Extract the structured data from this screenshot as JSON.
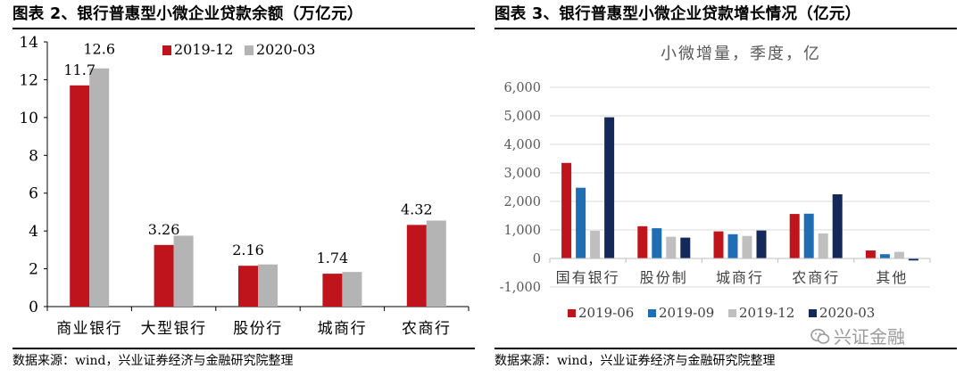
{
  "left": {
    "title": "图表 2、银行普惠型小微企业贷款余额（万亿元）",
    "source": "数据来源：wind，兴业证券经济与金融研究院整理"
  },
  "right": {
    "title": "图表 3、银行普惠型小微企业贷款增长情况（亿元）",
    "source": "数据来源：wind，兴业证券经济与金融研究院整理"
  },
  "watermark": "兴证金融",
  "chart_data": [
    {
      "type": "bar",
      "title": "",
      "xlabel": "",
      "ylabel": "",
      "categories": [
        "商业银行",
        "大型银行",
        "股份行",
        "城商行",
        "农商行"
      ],
      "series": [
        {
          "name": "2019-12",
          "values": [
            11.7,
            3.26,
            2.16,
            1.74,
            4.32
          ],
          "color": "#c0141c"
        },
        {
          "name": "2020-03",
          "values": [
            12.6,
            3.75,
            2.23,
            1.83,
            4.55
          ],
          "color": "#b4b4b4"
        }
      ],
      "data_labels": [
        "11.7",
        "3.26",
        "2.16",
        "1.74",
        "4.32"
      ],
      "data_labels_series2": [
        "12.6",
        "",
        "",
        "",
        ""
      ],
      "ylim": [
        0,
        14
      ],
      "yticks": [
        "0",
        "2",
        "4",
        "6",
        "8",
        "10",
        "12",
        "14"
      ],
      "grid": false,
      "legend": "top-right"
    },
    {
      "type": "bar",
      "title": "小微增量，季度，亿",
      "xlabel": "",
      "ylabel": "",
      "categories": [
        "国有银行",
        "股份制",
        "城商行",
        "农商行",
        "其他"
      ],
      "series": [
        {
          "name": "2019-06",
          "values": [
            3350,
            1130,
            950,
            1560,
            280
          ],
          "color": "#c0141c"
        },
        {
          "name": "2019-09",
          "values": [
            2480,
            1060,
            850,
            1570,
            150
          ],
          "color": "#1f6eb4"
        },
        {
          "name": "2019-12",
          "values": [
            970,
            760,
            790,
            880,
            230
          ],
          "color": "#bfbfbf"
        },
        {
          "name": "2020-03",
          "values": [
            4950,
            730,
            980,
            2250,
            -70
          ],
          "color": "#14285a"
        }
      ],
      "ylim": [
        -1000,
        6000
      ],
      "yticks": [
        "-1,000",
        "0",
        "1,000",
        "2,000",
        "3,000",
        "4,000",
        "5,000",
        "6,000"
      ],
      "grid": true,
      "legend": "bottom"
    }
  ]
}
